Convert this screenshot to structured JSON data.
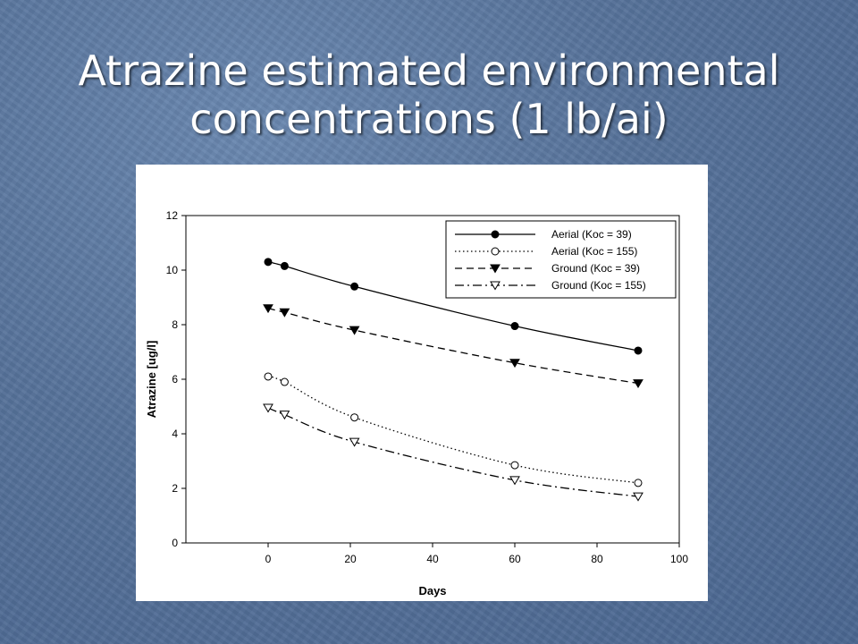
{
  "slide": {
    "title": "Atrazine estimated environmental concentrations (1 lb/ai)"
  },
  "chart_data": {
    "type": "line",
    "title": "",
    "xlabel": "Days",
    "ylabel": "Atrazine [ug/l]",
    "xlim": [
      -20,
      100
    ],
    "ylim": [
      0,
      12
    ],
    "xticks": [
      0,
      20,
      40,
      60,
      80,
      100
    ],
    "yticks": [
      0,
      2,
      4,
      6,
      8,
      10,
      12
    ],
    "grid": false,
    "legend_position": "top-right",
    "series": [
      {
        "name": "Aerial (Koc = 39)",
        "line": "solid",
        "marker": "filled-circle",
        "x": [
          0,
          4,
          21,
          60,
          90
        ],
        "y": [
          10.3,
          10.15,
          9.4,
          7.95,
          7.05
        ]
      },
      {
        "name": "Aerial (Koc = 155)",
        "line": "dotted",
        "marker": "open-circle",
        "x": [
          0,
          4,
          21,
          60,
          90
        ],
        "y": [
          6.1,
          5.9,
          4.6,
          2.85,
          2.2
        ]
      },
      {
        "name": "Ground (Koc = 39)",
        "line": "dashed",
        "marker": "filled-triangle-down",
        "x": [
          0,
          4,
          21,
          60,
          90
        ],
        "y": [
          8.6,
          8.45,
          7.8,
          6.6,
          5.85
        ]
      },
      {
        "name": "Ground (Koc = 155)",
        "line": "dash-dot",
        "marker": "open-triangle-down",
        "x": [
          0,
          4,
          21,
          60,
          90
        ],
        "y": [
          4.95,
          4.7,
          3.7,
          2.3,
          1.7
        ]
      }
    ]
  }
}
